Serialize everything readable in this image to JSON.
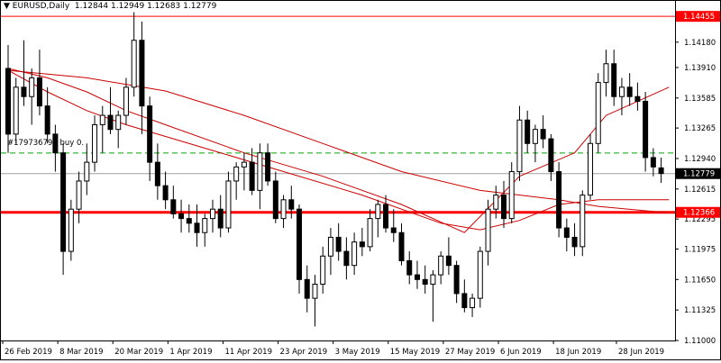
{
  "header": {
    "symbol_arrow": "▼",
    "text": "EURUSD,Daily  1.12844 1.12949 1.12683 1.12779"
  },
  "order_label": "#179736798 buy 0.",
  "price_axis": {
    "ticks": [
      "1.14455",
      "1.14180",
      "1.13910",
      "1.13585",
      "1.13265",
      "1.12940",
      "1.12615",
      "1.12295",
      "1.11975",
      "1.11650",
      "1.11325",
      "1.11000"
    ],
    "tick_values": [
      1.14455,
      1.1418,
      1.1391,
      1.13585,
      1.13265,
      1.1294,
      1.12615,
      1.12295,
      1.11975,
      1.1165,
      1.11325,
      1.11
    ]
  },
  "date_axis": {
    "labels": [
      "26 Feb 2019",
      "8 Mar 2019",
      "20 Mar 2019",
      "1 Apr 2019",
      "11 Apr 2019",
      "23 Apr 2019",
      "3 May 2019",
      "15 May 2019",
      "27 May 2019",
      "6 Jun 2019",
      "18 Jun 2019",
      "28 Jun 2019"
    ]
  },
  "colors": {
    "bull": "#ffffff",
    "bear": "#000000",
    "wick": "#000000",
    "ma": "#cc0000",
    "level": "#ff0000",
    "order": "#00aa00",
    "current": "#000000",
    "grid": "#a0a0a0"
  },
  "chart_data": {
    "type": "candlestick",
    "symbol": "EURUSD",
    "timeframe": "Daily",
    "current_price": 1.12779,
    "ylim": [
      1.11,
      1.1462
    ],
    "horizontal_levels": [
      {
        "price": 1.14455,
        "label": "1.14455",
        "style": "thin"
      },
      {
        "price": 1.12366,
        "label": "1.12366",
        "style": "thick"
      }
    ],
    "order_line": {
      "price": 1.12998,
      "label": "#179736798 buy 0."
    },
    "current_line": {
      "price": 1.12779,
      "label": "1.12779"
    },
    "ohlc": [
      [
        1.139,
        1.1415,
        1.13,
        1.132
      ],
      [
        1.132,
        1.138,
        1.131,
        1.137
      ],
      [
        1.137,
        1.142,
        1.135,
        1.136
      ],
      [
        1.136,
        1.139,
        1.133,
        1.138
      ],
      [
        1.138,
        1.141,
        1.134,
        1.135
      ],
      [
        1.135,
        1.137,
        1.131,
        1.132
      ],
      [
        1.132,
        1.133,
        1.128,
        1.13
      ],
      [
        1.13,
        1.131,
        1.117,
        1.1195
      ],
      [
        1.1195,
        1.125,
        1.1185,
        1.124
      ],
      [
        1.124,
        1.128,
        1.1225,
        1.127
      ],
      [
        1.127,
        1.131,
        1.1255,
        1.129
      ],
      [
        1.129,
        1.134,
        1.128,
        1.133
      ],
      [
        1.133,
        1.135,
        1.13,
        1.134
      ],
      [
        1.134,
        1.137,
        1.132,
        1.1325
      ],
      [
        1.1325,
        1.1345,
        1.1305,
        1.134
      ],
      [
        1.134,
        1.138,
        1.133,
        1.137
      ],
      [
        1.137,
        1.145,
        1.136,
        1.142
      ],
      [
        1.142,
        1.144,
        1.132,
        1.135
      ],
      [
        1.135,
        1.136,
        1.127,
        1.129
      ],
      [
        1.129,
        1.131,
        1.125,
        1.1265
      ],
      [
        1.1265,
        1.128,
        1.124,
        1.125
      ],
      [
        1.125,
        1.1265,
        1.123,
        1.1235
      ],
      [
        1.1235,
        1.125,
        1.1215,
        1.123
      ],
      [
        1.123,
        1.1245,
        1.1215,
        1.1225
      ],
      [
        1.1225,
        1.1245,
        1.12,
        1.1215
      ],
      [
        1.1215,
        1.1235,
        1.12,
        1.123
      ],
      [
        1.123,
        1.125,
        1.1215,
        1.124
      ],
      [
        1.124,
        1.1255,
        1.121,
        1.122
      ],
      [
        1.122,
        1.128,
        1.1215,
        1.127
      ],
      [
        1.127,
        1.129,
        1.125,
        1.1285
      ],
      [
        1.1285,
        1.13,
        1.126,
        1.129
      ],
      [
        1.129,
        1.1305,
        1.1255,
        1.126
      ],
      [
        1.126,
        1.131,
        1.124,
        1.13
      ],
      [
        1.13,
        1.131,
        1.1265,
        1.127
      ],
      [
        1.127,
        1.128,
        1.1225,
        1.123
      ],
      [
        1.123,
        1.1255,
        1.122,
        1.125
      ],
      [
        1.125,
        1.1265,
        1.123,
        1.124
      ],
      [
        1.124,
        1.1245,
        1.115,
        1.1165
      ],
      [
        1.1165,
        1.118,
        1.113,
        1.1145
      ],
      [
        1.1145,
        1.117,
        1.1115,
        1.116
      ],
      [
        1.116,
        1.12,
        1.115,
        1.119
      ],
      [
        1.119,
        1.122,
        1.117,
        1.121
      ],
      [
        1.121,
        1.1225,
        1.1185,
        1.1195
      ],
      [
        1.1195,
        1.121,
        1.1165,
        1.118
      ],
      [
        1.118,
        1.1215,
        1.117,
        1.1205
      ],
      [
        1.1205,
        1.122,
        1.119,
        1.12
      ],
      [
        1.12,
        1.124,
        1.1195,
        1.123
      ],
      [
        1.123,
        1.125,
        1.121,
        1.1245
      ],
      [
        1.1245,
        1.1255,
        1.1215,
        1.122
      ],
      [
        1.122,
        1.124,
        1.1205,
        1.1215
      ],
      [
        1.1215,
        1.1225,
        1.118,
        1.1185
      ],
      [
        1.1185,
        1.1195,
        1.116,
        1.117
      ],
      [
        1.117,
        1.1185,
        1.1155,
        1.1165
      ],
      [
        1.1165,
        1.118,
        1.115,
        1.116
      ],
      [
        1.116,
        1.1175,
        1.112,
        1.117
      ],
      [
        1.117,
        1.1195,
        1.116,
        1.119
      ],
      [
        1.119,
        1.121,
        1.117,
        1.118
      ],
      [
        1.118,
        1.1185,
        1.114,
        1.115
      ],
      [
        1.115,
        1.1165,
        1.113,
        1.1135
      ],
      [
        1.1135,
        1.115,
        1.1125,
        1.1145
      ],
      [
        1.1145,
        1.12,
        1.1135,
        1.1195
      ],
      [
        1.1195,
        1.125,
        1.118,
        1.124
      ],
      [
        1.124,
        1.1265,
        1.123,
        1.1255
      ],
      [
        1.1255,
        1.127,
        1.122,
        1.123
      ],
      [
        1.123,
        1.129,
        1.1225,
        1.128
      ],
      [
        1.128,
        1.135,
        1.127,
        1.1335
      ],
      [
        1.1335,
        1.1345,
        1.13,
        1.131
      ],
      [
        1.131,
        1.133,
        1.129,
        1.1325
      ],
      [
        1.1325,
        1.134,
        1.1305,
        1.1315
      ],
      [
        1.1315,
        1.132,
        1.127,
        1.128
      ],
      [
        1.128,
        1.129,
        1.121,
        1.122
      ],
      [
        1.122,
        1.123,
        1.1195,
        1.121
      ],
      [
        1.121,
        1.1225,
        1.119,
        1.12
      ],
      [
        1.12,
        1.126,
        1.119,
        1.1255
      ],
      [
        1.1255,
        1.132,
        1.125,
        1.131
      ],
      [
        1.131,
        1.1385,
        1.13,
        1.1375
      ],
      [
        1.1375,
        1.141,
        1.136,
        1.1395
      ],
      [
        1.1395,
        1.141,
        1.135,
        1.136
      ],
      [
        1.136,
        1.138,
        1.134,
        1.137
      ],
      [
        1.137,
        1.1385,
        1.135,
        1.136
      ],
      [
        1.136,
        1.1375,
        1.1345,
        1.1355
      ],
      [
        1.1355,
        1.1365,
        1.128,
        1.1295
      ],
      [
        1.1295,
        1.1305,
        1.1275,
        1.1285
      ],
      [
        1.1284,
        1.1295,
        1.1268,
        1.1278
      ]
    ],
    "moving_averages": [
      {
        "period_label": "long",
        "points": [
          [
            0,
            1.1388
          ],
          [
            10,
            1.138
          ],
          [
            20,
            1.1366
          ],
          [
            30,
            1.134
          ],
          [
            40,
            1.131
          ],
          [
            50,
            1.128
          ],
          [
            60,
            1.126
          ],
          [
            70,
            1.125
          ],
          [
            75,
            1.1243
          ],
          [
            84,
            1.1236
          ]
        ]
      },
      {
        "period_label": "medium",
        "points": [
          [
            0,
            1.1388
          ],
          [
            5,
            1.1365
          ],
          [
            10,
            1.1345
          ],
          [
            15,
            1.133
          ],
          [
            25,
            1.1305
          ],
          [
            35,
            1.128
          ],
          [
            45,
            1.1255
          ],
          [
            55,
            1.1225
          ],
          [
            60,
            1.1218
          ],
          [
            65,
            1.1228
          ],
          [
            70,
            1.1245
          ],
          [
            75,
            1.125
          ],
          [
            84,
            1.125
          ]
        ]
      },
      {
        "period_label": "short",
        "points": [
          [
            0,
            1.139
          ],
          [
            5,
            1.138
          ],
          [
            10,
            1.1365
          ],
          [
            15,
            1.1345
          ],
          [
            20,
            1.133
          ],
          [
            30,
            1.13
          ],
          [
            40,
            1.1275
          ],
          [
            50,
            1.1245
          ],
          [
            58,
            1.1215
          ],
          [
            65,
            1.1275
          ],
          [
            72,
            1.13
          ],
          [
            76,
            1.134
          ],
          [
            84,
            1.137
          ]
        ]
      }
    ]
  }
}
